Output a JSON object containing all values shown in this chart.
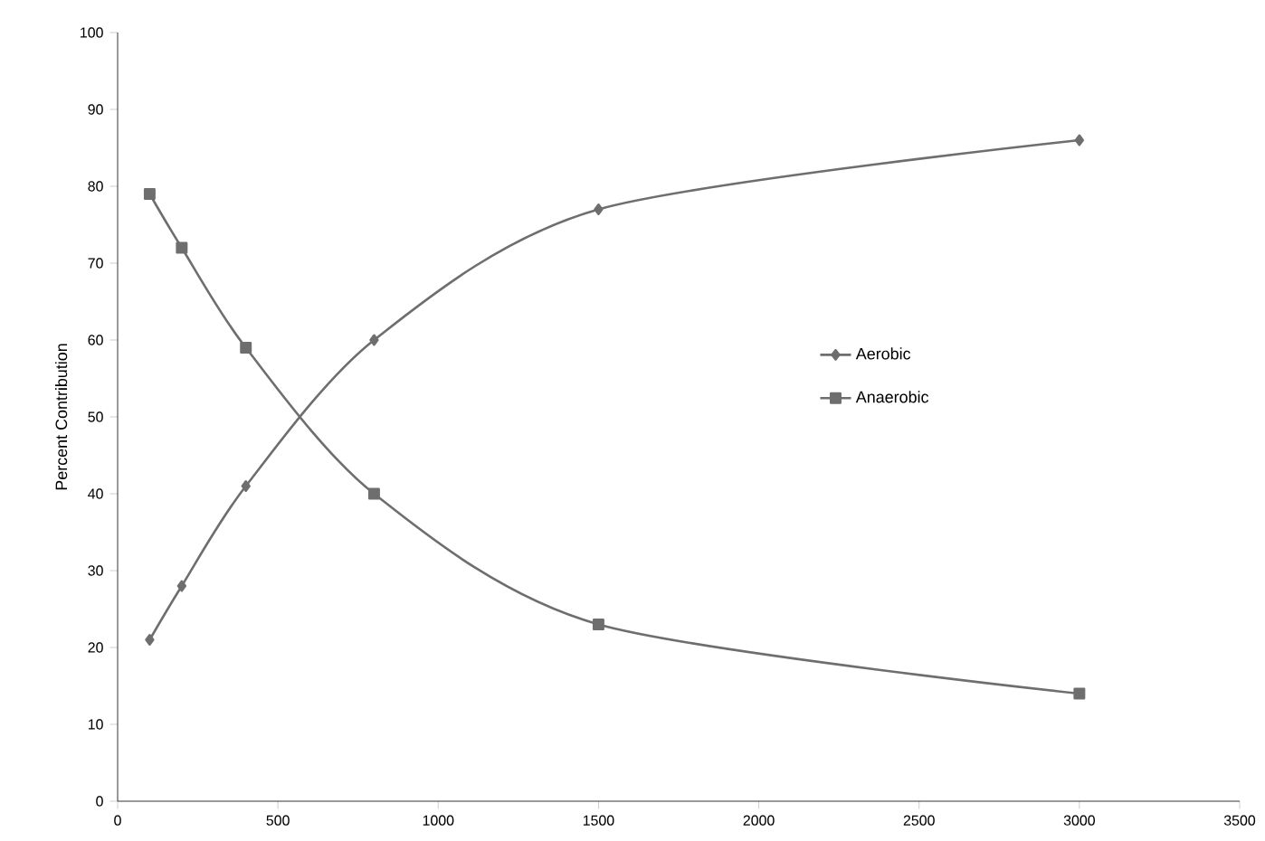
{
  "chart_data": {
    "type": "line",
    "ylabel": "Percent Contribution",
    "x": [
      100,
      200,
      400,
      800,
      1500,
      3000
    ],
    "series": [
      {
        "name": "Aerobic",
        "color": "#6e6e6e",
        "marker": "diamond",
        "values": [
          21,
          28,
          41,
          60,
          77,
          86
        ]
      },
      {
        "name": "Anaerobic",
        "color": "#6e6e6e",
        "marker": "square",
        "values": [
          79,
          72,
          59,
          40,
          23,
          14
        ]
      }
    ],
    "xlim": [
      0,
      3500
    ],
    "xticks": [
      0,
      500,
      1000,
      1500,
      2000,
      2500,
      3000,
      3500
    ],
    "ylim": [
      0,
      100
    ],
    "yticks": [
      0,
      10,
      20,
      30,
      40,
      50,
      60,
      70,
      80,
      90,
      100
    ],
    "grid": false,
    "legend": "right"
  }
}
